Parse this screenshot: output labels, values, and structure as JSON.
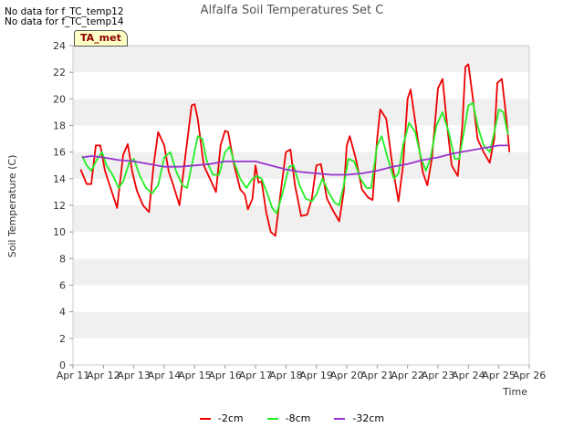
{
  "notices": [
    "No data for f_TC_temp12",
    "No data for f_TC_temp14"
  ],
  "badge": "TA_met",
  "chart_data": {
    "type": "line",
    "title": "Alfalfa Soil Temperatures Set C",
    "xlabel": "Time",
    "ylabel": "Soil Temperature (C)",
    "ylim": [
      0,
      24
    ],
    "yticks": [
      0,
      2,
      4,
      6,
      8,
      10,
      12,
      14,
      16,
      18,
      20,
      22,
      24
    ],
    "xlim": [
      11,
      26
    ],
    "xticks": [
      11,
      12,
      13,
      14,
      15,
      16,
      17,
      18,
      19,
      20,
      21,
      22,
      23,
      24,
      25,
      26
    ],
    "xtick_labels": [
      "Apr 11",
      "Apr 12",
      "Apr 13",
      "Apr 14",
      "Apr 15",
      "Apr 16",
      "Apr 17",
      "Apr 18",
      "Apr 19",
      "Apr 20",
      "Apr 21",
      "Apr 22",
      "Apr 23",
      "Apr 24",
      "Apr 25",
      "Apr 26"
    ],
    "grid": "alternating horizontal bands",
    "legend_position": "bottom",
    "series": [
      {
        "name": "-2cm",
        "color": "#ee0000",
        "x": [
          11.25,
          11.45,
          11.6,
          11.75,
          11.9,
          12.05,
          12.25,
          12.45,
          12.65,
          12.8,
          12.95,
          13.1,
          13.3,
          13.5,
          13.65,
          13.8,
          14.0,
          14.15,
          14.3,
          14.5,
          14.7,
          14.9,
          15.0,
          15.1,
          15.3,
          15.5,
          15.7,
          15.85,
          16.0,
          16.1,
          16.3,
          16.5,
          16.65,
          16.75,
          16.9,
          17.0,
          17.1,
          17.2,
          17.35,
          17.5,
          17.65,
          17.8,
          18.0,
          18.15,
          18.3,
          18.5,
          18.7,
          18.85,
          19.0,
          19.15,
          19.35,
          19.55,
          19.75,
          19.9,
          20.0,
          20.1,
          20.3,
          20.5,
          20.7,
          20.85,
          21.0,
          21.1,
          21.3,
          21.5,
          21.7,
          21.85,
          22.0,
          22.1,
          22.3,
          22.5,
          22.65,
          22.8,
          23.0,
          23.15,
          23.3,
          23.45,
          23.65,
          23.8,
          23.9,
          24.0,
          24.15,
          24.3,
          24.5,
          24.7,
          24.85,
          24.95,
          25.1,
          25.25,
          25.35
        ],
        "values": [
          14.7,
          13.6,
          13.6,
          16.5,
          16.5,
          14.6,
          13.2,
          11.8,
          15.8,
          16.6,
          14.5,
          13.1,
          12.0,
          11.5,
          15.0,
          17.5,
          16.5,
          14.5,
          13.5,
          12.0,
          15.8,
          19.5,
          19.6,
          18.5,
          15.0,
          14.0,
          13.0,
          16.5,
          17.6,
          17.5,
          15.0,
          13.2,
          12.8,
          11.7,
          12.5,
          15.0,
          13.7,
          13.8,
          11.5,
          10.0,
          9.7,
          12.5,
          16.0,
          16.2,
          13.5,
          11.2,
          11.3,
          12.5,
          15.0,
          15.1,
          12.5,
          11.6,
          10.8,
          13.0,
          16.5,
          17.2,
          15.5,
          13.2,
          12.6,
          12.4,
          17.0,
          19.2,
          18.5,
          15.0,
          12.3,
          15.0,
          20.0,
          20.7,
          17.5,
          14.5,
          13.5,
          15.5,
          20.8,
          21.5,
          18.0,
          15.0,
          14.2,
          18.0,
          22.4,
          22.6,
          20.0,
          17.0,
          16.0,
          15.2,
          17.0,
          21.2,
          21.5,
          18.5,
          16.0
        ]
      },
      {
        "name": "-8cm",
        "color": "#22ee22",
        "x": [
          11.3,
          11.45,
          11.6,
          11.8,
          11.95,
          12.1,
          12.3,
          12.5,
          12.65,
          12.85,
          13.0,
          13.2,
          13.4,
          13.6,
          13.8,
          14.0,
          14.2,
          14.4,
          14.6,
          14.75,
          14.95,
          15.1,
          15.25,
          15.4,
          15.6,
          15.8,
          16.0,
          16.15,
          16.3,
          16.5,
          16.7,
          16.9,
          17.05,
          17.2,
          17.4,
          17.55,
          17.7,
          17.9,
          18.1,
          18.25,
          18.45,
          18.65,
          18.85,
          19.0,
          19.2,
          19.4,
          19.6,
          19.75,
          19.9,
          20.05,
          20.25,
          20.45,
          20.65,
          20.8,
          21.0,
          21.15,
          21.35,
          21.55,
          21.7,
          21.85,
          22.05,
          22.25,
          22.45,
          22.6,
          22.75,
          22.95,
          23.15,
          23.35,
          23.55,
          23.7,
          23.85,
          24.0,
          24.15,
          24.3,
          24.5,
          24.7,
          24.85,
          25.0,
          25.15,
          25.3
        ],
        "values": [
          15.7,
          15.0,
          14.6,
          15.5,
          16.0,
          15.0,
          14.3,
          13.3,
          13.8,
          15.2,
          15.5,
          14.2,
          13.3,
          12.9,
          13.5,
          15.6,
          16.0,
          14.5,
          13.5,
          13.3,
          15.5,
          17.2,
          17.0,
          15.3,
          14.3,
          14.3,
          16.0,
          16.4,
          15.2,
          14.0,
          13.3,
          14.0,
          14.2,
          14.0,
          12.8,
          11.8,
          11.4,
          13.0,
          14.9,
          15.0,
          13.5,
          12.5,
          12.3,
          12.8,
          14.0,
          13.0,
          12.2,
          12.0,
          13.5,
          15.5,
          15.3,
          14.0,
          13.3,
          13.3,
          16.5,
          17.2,
          15.5,
          14.0,
          14.4,
          16.5,
          18.2,
          17.5,
          15.5,
          14.6,
          15.5,
          18.0,
          19.0,
          17.5,
          15.5,
          15.5,
          17.5,
          19.5,
          19.7,
          18.0,
          16.5,
          16.0,
          17.5,
          19.2,
          19.0,
          17.3
        ]
      },
      {
        "name": "-32cm",
        "color": "#9933cc",
        "x": [
          11.3,
          11.6,
          12.0,
          12.5,
          13.0,
          13.5,
          14.0,
          14.5,
          15.0,
          15.5,
          16.0,
          16.5,
          17.0,
          17.5,
          18.0,
          18.5,
          19.0,
          19.5,
          20.0,
          20.5,
          21.0,
          21.5,
          22.0,
          22.5,
          23.0,
          23.5,
          24.0,
          24.5,
          25.0,
          25.3
        ],
        "values": [
          15.6,
          15.7,
          15.6,
          15.4,
          15.3,
          15.1,
          14.9,
          14.9,
          15.0,
          15.1,
          15.3,
          15.3,
          15.3,
          15.0,
          14.7,
          14.5,
          14.4,
          14.3,
          14.3,
          14.4,
          14.6,
          14.9,
          15.1,
          15.4,
          15.6,
          15.9,
          16.1,
          16.3,
          16.5,
          16.5
        ]
      }
    ]
  }
}
